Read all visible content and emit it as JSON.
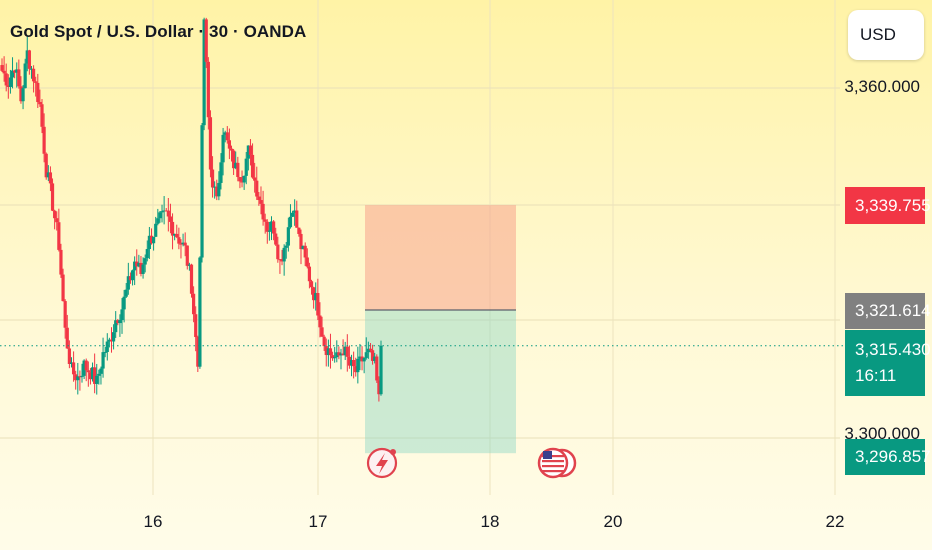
{
  "header": {
    "title": "Gold Spot / U.S. Dollar · 30 · OANDA"
  },
  "currency_button": {
    "label": "USD"
  },
  "price_axis": {
    "labels": [
      "3,360.000",
      "3,300.000"
    ]
  },
  "tags": {
    "stop": {
      "value": "3,339.755",
      "color": "#f23645"
    },
    "entry": {
      "value": "3,321.614",
      "color": "#808080"
    },
    "current": {
      "value": "3,315.430",
      "countdown": "16:11",
      "color": "#089981"
    },
    "target": {
      "value": "3,296.857",
      "color": "#089981"
    }
  },
  "time_axis": {
    "labels": [
      "16",
      "17",
      "18",
      "20",
      "22"
    ]
  },
  "events": [
    {
      "icon": "earnings-flash-icon"
    },
    {
      "icon": "us-flag-event-icon"
    }
  ],
  "colors": {
    "up": "#089981",
    "down": "#f23645",
    "risk_zone": "#f7a48d",
    "reward_zone": "#8fd6c5"
  },
  "chart_data": {
    "type": "candlestick",
    "symbol": "XAUUSD",
    "interval": "30",
    "ylim": [
      3289,
      3372
    ],
    "xlabels": [
      "16",
      "17",
      "18",
      "20",
      "22"
    ],
    "close_path": [
      3363,
      3361,
      3364,
      3358,
      3366,
      3362,
      3357,
      3346,
      3340,
      3333,
      3318,
      3311,
      3310,
      3312,
      3311,
      3309,
      3314,
      3316,
      3320,
      3322,
      3326,
      3330,
      3328,
      3333,
      3335,
      3337,
      3338,
      3336,
      3334,
      3332,
      3326,
      3312,
      3372,
      3346,
      3340,
      3353,
      3349,
      3346,
      3345,
      3349,
      3344,
      3340,
      3336,
      3336,
      3330,
      3334,
      3340,
      3334,
      3330,
      3326,
      3322,
      3316,
      3314,
      3313,
      3315,
      3312,
      3311,
      3313,
      3314,
      3312,
      3303
    ],
    "position": {
      "side": "short",
      "entry": 3321.614,
      "stop": 3339.755,
      "target": 3296.857
    },
    "last_price": 3315.43
  }
}
